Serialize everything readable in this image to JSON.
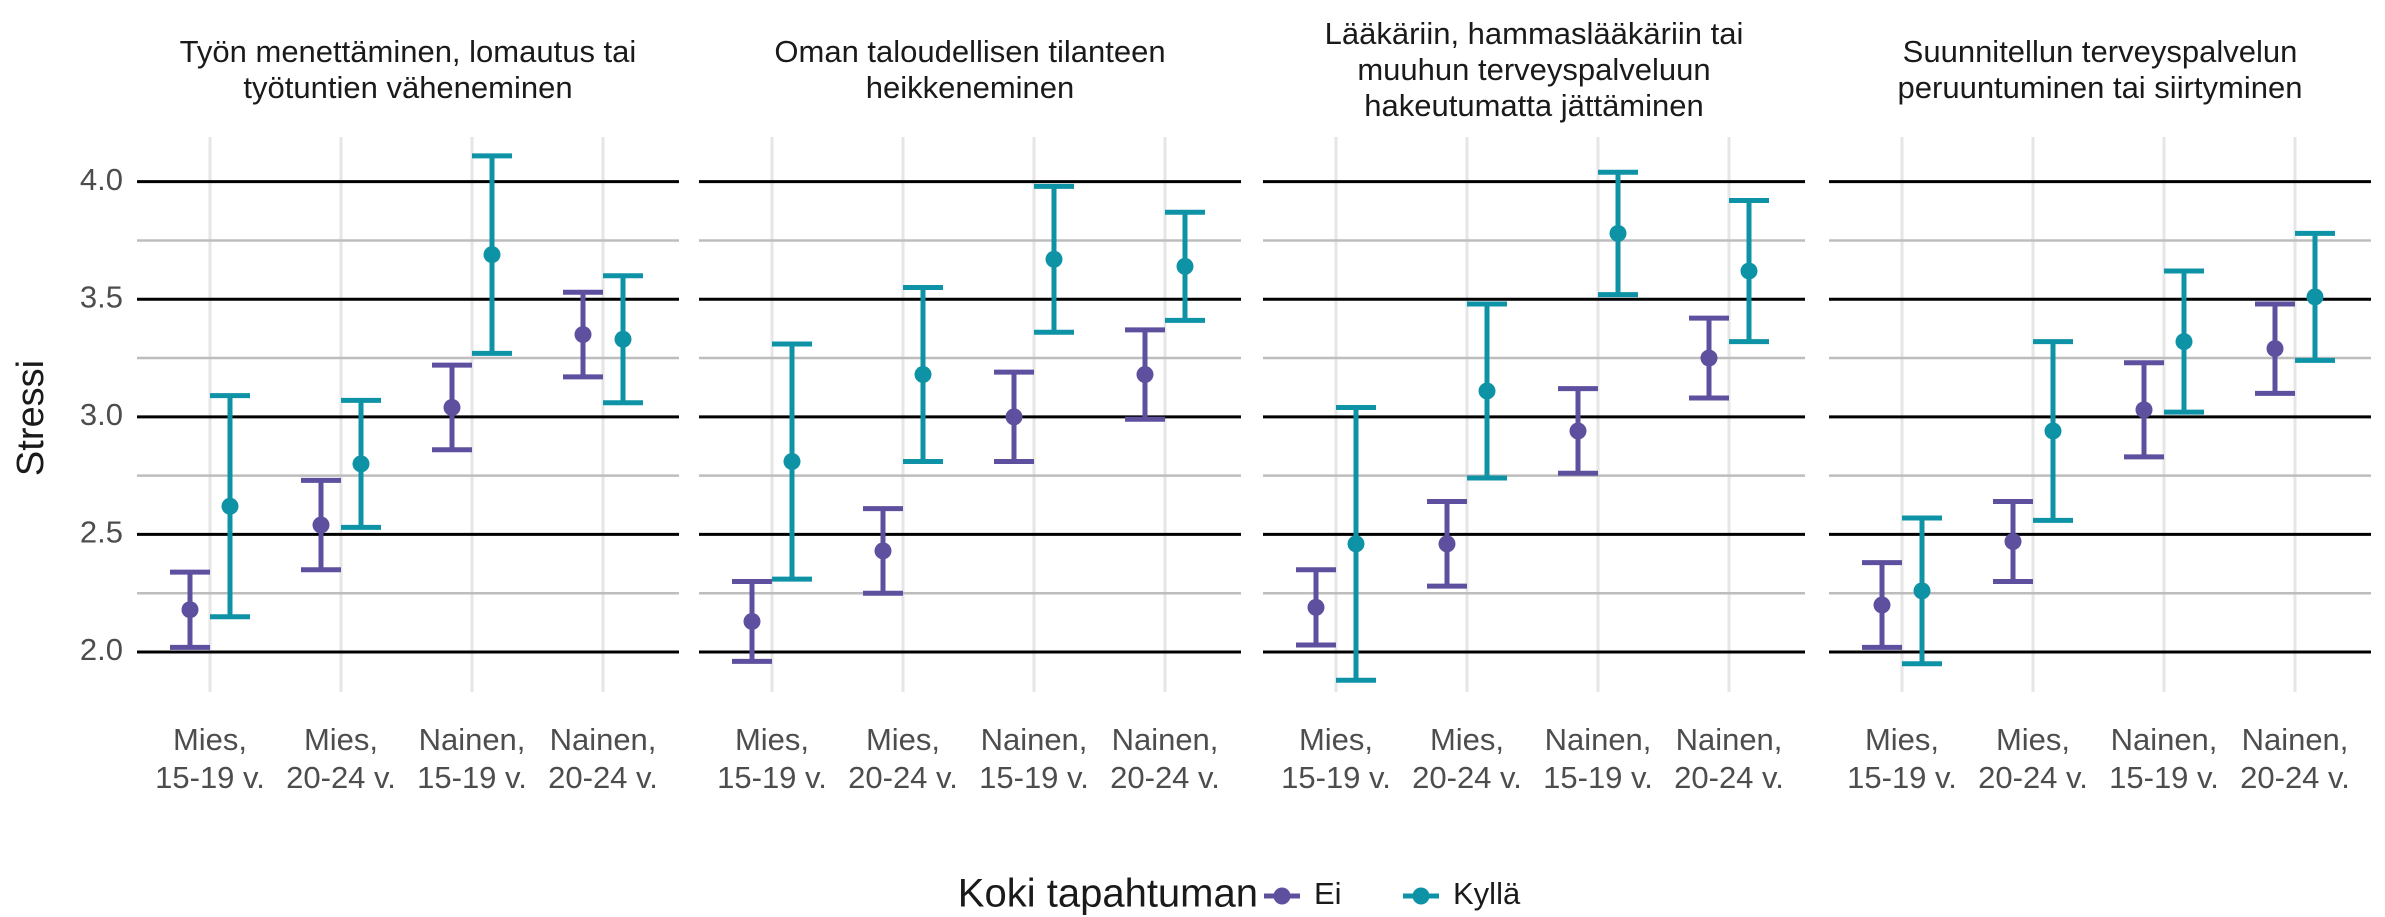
{
  "chart_data": [
    {
      "type": "errorbar",
      "title": [
        "Työn menettäminen, lomautus tai",
        "työtuntien väheneminen"
      ],
      "ylabel": "Stressi",
      "categories": [
        [
          "Mies,",
          "15-19 v."
        ],
        [
          "Mies,",
          "20-24 v."
        ],
        [
          "Nainen,",
          "15-19 v."
        ],
        [
          "Nainen,",
          "20-24 v."
        ]
      ],
      "series": [
        {
          "name": "Ei",
          "color": "#5e509f",
          "values": [
            2.18,
            2.54,
            3.04,
            3.35
          ],
          "errors": [
            0.16,
            0.19,
            0.18,
            0.18
          ]
        },
        {
          "name": "Kyllä",
          "color": "#0e93a6",
          "values": [
            2.62,
            2.8,
            3.69,
            3.33
          ],
          "errors": [
            0.47,
            0.27,
            0.42,
            0.27
          ]
        }
      ],
      "ylim": [
        1.83,
        4.19
      ],
      "yticks": [
        {
          "value": 2,
          "label": "2.0"
        },
        {
          "value": 2.5,
          "label": "2.5"
        },
        {
          "value": 3,
          "label": "3.0"
        },
        {
          "value": 3.5,
          "label": "3.5"
        },
        {
          "value": 4,
          "label": "4.0"
        }
      ],
      "minor_yticks": [
        2.25,
        2.75,
        3.25,
        3.75
      ]
    },
    {
      "type": "errorbar",
      "title": [
        "Oman taloudellisen tilanteen",
        "heikkeneminen"
      ],
      "categories": [
        [
          "Mies,",
          "15-19 v."
        ],
        [
          "Mies,",
          "20-24 v."
        ],
        [
          "Nainen,",
          "15-19 v."
        ],
        [
          "Nainen,",
          "20-24 v."
        ]
      ],
      "series": [
        {
          "name": "Ei",
          "color": "#5e509f",
          "values": [
            2.13,
            2.43,
            3.0,
            3.18
          ],
          "errors": [
            0.17,
            0.18,
            0.19,
            0.19
          ]
        },
        {
          "name": "Kyllä",
          "color": "#0e93a6",
          "values": [
            2.81,
            3.18,
            3.67,
            3.64
          ],
          "errors": [
            0.5,
            0.37,
            0.31,
            0.23
          ]
        }
      ],
      "ylim": [
        1.83,
        4.19
      ],
      "yticks": [
        {
          "value": 2,
          "label": "2.0"
        },
        {
          "value": 2.5,
          "label": "2.5"
        },
        {
          "value": 3,
          "label": "3.0"
        },
        {
          "value": 3.5,
          "label": "3.5"
        },
        {
          "value": 4,
          "label": "4.0"
        }
      ],
      "minor_yticks": [
        2.25,
        2.75,
        3.25,
        3.75
      ]
    },
    {
      "type": "errorbar",
      "title": [
        "Lääkäriin, hammaslääkäriin tai",
        "muuhun terveyspalveluun",
        "hakeutumatta jättäminen"
      ],
      "categories": [
        [
          "Mies,",
          "15-19 v."
        ],
        [
          "Mies,",
          "20-24 v."
        ],
        [
          "Nainen,",
          "15-19 v."
        ],
        [
          "Nainen,",
          "20-24 v."
        ]
      ],
      "series": [
        {
          "name": "Ei",
          "color": "#5e509f",
          "values": [
            2.19,
            2.46,
            2.94,
            3.25
          ],
          "errors": [
            0.16,
            0.18,
            0.18,
            0.17
          ]
        },
        {
          "name": "Kyllä",
          "color": "#0e93a6",
          "values": [
            2.46,
            3.11,
            3.78,
            3.62
          ],
          "errors": [
            0.58,
            0.37,
            0.26,
            0.3
          ]
        }
      ],
      "ylim": [
        1.83,
        4.19
      ],
      "yticks": [
        {
          "value": 2,
          "label": "2.0"
        },
        {
          "value": 2.5,
          "label": "2.5"
        },
        {
          "value": 3,
          "label": "3.0"
        },
        {
          "value": 3.5,
          "label": "3.5"
        },
        {
          "value": 4,
          "label": "4.0"
        }
      ],
      "minor_yticks": [
        2.25,
        2.75,
        3.25,
        3.75
      ]
    },
    {
      "type": "errorbar",
      "title": [
        "Suunnitellun terveyspalvelun",
        "peruuntuminen tai siirtyminen"
      ],
      "categories": [
        [
          "Mies,",
          "15-19 v."
        ],
        [
          "Mies,",
          "20-24 v."
        ],
        [
          "Nainen,",
          "15-19 v."
        ],
        [
          "Nainen,",
          "20-24 v."
        ]
      ],
      "series": [
        {
          "name": "Ei",
          "color": "#5e509f",
          "values": [
            2.2,
            2.47,
            3.03,
            3.29
          ],
          "errors": [
            0.18,
            0.17,
            0.2,
            0.19
          ]
        },
        {
          "name": "Kyllä",
          "color": "#0e93a6",
          "values": [
            2.26,
            2.94,
            3.32,
            3.51
          ],
          "errors": [
            0.31,
            0.38,
            0.3,
            0.27
          ]
        }
      ],
      "ylim": [
        1.83,
        4.19
      ],
      "yticks": [
        {
          "value": 2,
          "label": "2.0"
        },
        {
          "value": 2.5,
          "label": "2.5"
        },
        {
          "value": 3,
          "label": "3.0"
        },
        {
          "value": 3.5,
          "label": "3.5"
        },
        {
          "value": 4,
          "label": "4.0"
        }
      ],
      "minor_yticks": [
        2.25,
        2.75,
        3.25,
        3.75
      ]
    }
  ],
  "legend": {
    "title": "Koki tapahtuman"
  }
}
